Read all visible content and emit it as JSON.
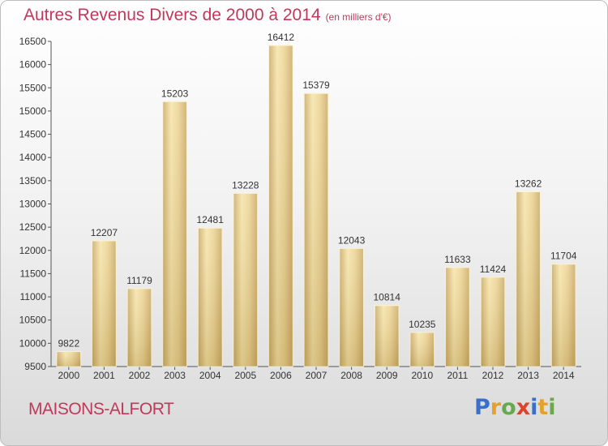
{
  "header": {
    "title": "Autres Revenus Divers de 2000 à 2014",
    "subtitle": "(en milliers d'€)"
  },
  "footer": {
    "city": "MAISONS-ALFORT",
    "logo_letters": [
      "P",
      "r",
      "o",
      "x",
      "i",
      "t",
      "i"
    ],
    "logo_colors": [
      "#3a6fc9",
      "#e2a22b",
      "#6aa84f",
      "#d8442f",
      "#3a6fc9",
      "#e2a22b",
      "#6aa84f"
    ]
  },
  "colors": {
    "title": "#c0385a",
    "bar_light": "#f5e3a6",
    "bar_dark": "#c4a868"
  },
  "chart_data": {
    "type": "bar",
    "categories": [
      "2000",
      "2001",
      "2002",
      "2003",
      "2004",
      "2005",
      "2006",
      "2007",
      "2008",
      "2009",
      "2010",
      "2011",
      "2012",
      "2013",
      "2014"
    ],
    "values": [
      9822,
      12207,
      11179,
      15203,
      12481,
      13228,
      16412,
      15379,
      12043,
      10814,
      10235,
      11633,
      11424,
      13262,
      11704
    ],
    "ylim": [
      9500,
      16500
    ],
    "yticks": [
      "9500",
      "10000",
      "10500",
      "11000",
      "11500",
      "12000",
      "12500",
      "13000",
      "13500",
      "14000",
      "14500",
      "15000",
      "15500",
      "16000",
      "16500"
    ],
    "grid": false,
    "data_labels": true
  }
}
